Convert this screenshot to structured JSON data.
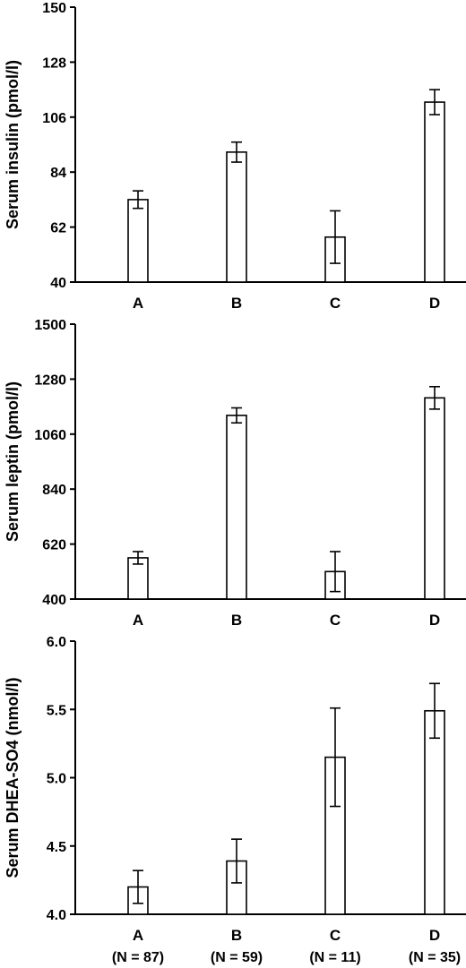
{
  "chart_data": [
    {
      "type": "bar",
      "categories": [
        "A",
        "B",
        "C",
        "D"
      ],
      "values": [
        73,
        92,
        58,
        112
      ],
      "errors": [
        3.5,
        4,
        10.5,
        5
      ],
      "ylabel": "Serum insulin (pmol/l)",
      "ylim": [
        40,
        150
      ],
      "yticks": [
        40,
        62,
        84,
        106,
        128,
        150
      ]
    },
    {
      "type": "bar",
      "categories": [
        "A",
        "B",
        "C",
        "D"
      ],
      "values": [
        565,
        1135,
        510,
        1205
      ],
      "errors": [
        25,
        30,
        80,
        45
      ],
      "ylabel": "Serum leptin (pmol/l)",
      "ylim": [
        400,
        1500
      ],
      "yticks": [
        400,
        620,
        840,
        1060,
        1280,
        1500
      ]
    },
    {
      "type": "bar",
      "categories": [
        "A",
        "B",
        "C",
        "D"
      ],
      "n_labels": [
        "(N = 87)",
        "(N = 59)",
        "(N = 11)",
        "(N = 35)"
      ],
      "values": [
        4.2,
        4.39,
        5.15,
        5.49
      ],
      "errors": [
        0.12,
        0.16,
        0.36,
        0.2
      ],
      "ylabel": "Serum DHEA-SO4 (nmol/l)",
      "ylim": [
        4.0,
        6.0
      ],
      "yticks": [
        "4.0",
        "4.5",
        "5.0",
        "5.5",
        "6.0"
      ]
    }
  ]
}
